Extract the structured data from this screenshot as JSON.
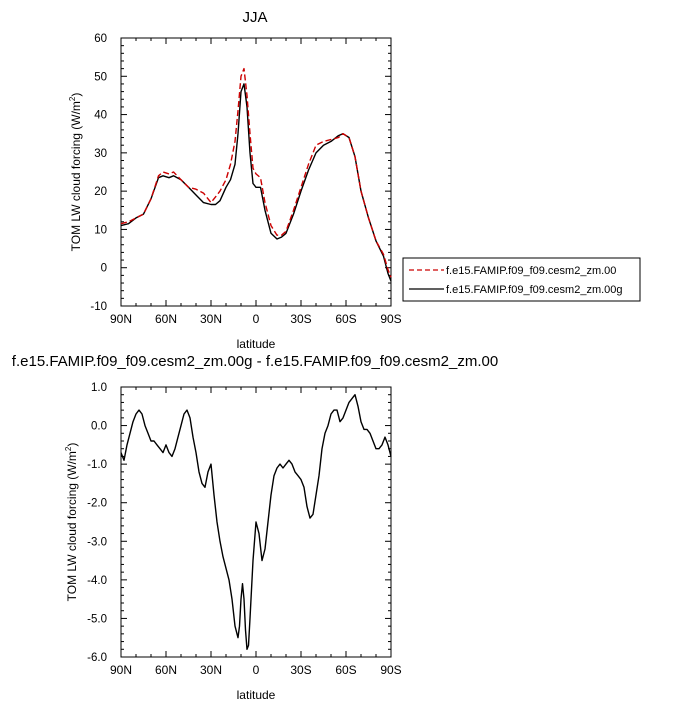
{
  "chart_data": [
    {
      "type": "line",
      "title": "JJA",
      "xlabel": "latitude",
      "ylabel": "TOM LW cloud forcing (W/m",
      "ylabel_sup": "2",
      "ylabel_close": ")",
      "xlim": [
        90,
        -90
      ],
      "ylim": [
        -10,
        60
      ],
      "x_ticks": [
        90,
        60,
        30,
        0,
        -30,
        -60,
        -90
      ],
      "x_tick_labels": [
        "90N",
        "60N",
        "30N",
        "0",
        "30S",
        "60S",
        "90S"
      ],
      "y_ticks": [
        -10,
        0,
        10,
        20,
        30,
        40,
        50,
        60
      ],
      "y_tick_labels": [
        "-10",
        "0",
        "10",
        "20",
        "30",
        "40",
        "50",
        "60"
      ],
      "legend": "outside-right",
      "series": [
        {
          "name": "f.e15.FAMIP.f09_f09.cesm2_zm.00",
          "color": "#cc0000",
          "dash": "dashed",
          "x": [
            90,
            85,
            80,
            75,
            70,
            65,
            62,
            58,
            55,
            50,
            45,
            40,
            35,
            30,
            27,
            24,
            20,
            17,
            14,
            12,
            10,
            8,
            6,
            4,
            2,
            0,
            -3,
            -6,
            -10,
            -14,
            -17,
            -20,
            -25,
            -30,
            -35,
            -40,
            -45,
            -50,
            -55,
            -58,
            -62,
            -66,
            -70,
            -75,
            -80,
            -85,
            -88,
            -90
          ],
          "values": [
            11.5,
            12,
            13,
            14,
            18,
            24,
            25,
            24.5,
            25,
            23,
            21,
            20.5,
            19.5,
            17,
            18.5,
            20,
            23,
            27,
            33,
            41,
            50,
            52,
            45,
            35,
            26,
            24.5,
            23.5,
            17,
            11,
            8.5,
            8.5,
            9.5,
            15,
            21,
            27,
            32,
            33,
            33.5,
            34,
            35,
            34,
            29,
            20,
            13,
            7,
            3.5,
            -0.5,
            -2.5
          ]
        },
        {
          "name": "f.e15.FAMIP.f09_f09.cesm2_zm.00g",
          "color": "#000000",
          "dash": "solid",
          "x": [
            90,
            85,
            80,
            75,
            70,
            65,
            62,
            58,
            55,
            50,
            45,
            40,
            35,
            30,
            27,
            24,
            20,
            17,
            14,
            12,
            10,
            8,
            6,
            4,
            2,
            0,
            -3,
            -6,
            -10,
            -14,
            -17,
            -20,
            -25,
            -30,
            -35,
            -40,
            -45,
            -50,
            -55,
            -58,
            -62,
            -66,
            -70,
            -75,
            -80,
            -85,
            -88,
            -90
          ],
          "values": [
            11,
            11.5,
            13,
            14,
            18,
            23.5,
            24,
            23.5,
            24,
            23,
            21,
            19,
            17,
            16.5,
            16.5,
            17.5,
            21,
            23,
            27,
            35,
            46,
            48,
            42,
            30,
            22,
            21,
            21,
            15,
            9,
            7.5,
            8,
            9,
            14,
            20,
            25.5,
            30,
            32,
            33,
            34.5,
            35,
            34,
            29,
            20,
            13,
            7,
            3,
            -1.5,
            -3.5
          ]
        }
      ]
    },
    {
      "type": "line",
      "title": "f.e15.FAMIP.f09_f09.cesm2_zm.00g - f.e15.FAMIP.f09_f09.cesm2_zm.00",
      "xlabel": "latitude",
      "ylabel": "TOM LW cloud forcing (W/m",
      "ylabel_sup": "2",
      "ylabel_close": ")",
      "xlim": [
        90,
        -90
      ],
      "ylim": [
        -6,
        1
      ],
      "x_ticks": [
        90,
        60,
        30,
        0,
        -30,
        -60,
        -90
      ],
      "x_tick_labels": [
        "90N",
        "60N",
        "30N",
        "0",
        "30S",
        "60S",
        "90S"
      ],
      "y_ticks": [
        -6,
        -5,
        -4,
        -3,
        -2,
        -1,
        0,
        1
      ],
      "y_tick_labels": [
        "-6.0",
        "-5.0",
        "-4.0",
        "-3.0",
        "-2.0",
        "-1.0",
        "0.0",
        "1.0"
      ],
      "series": [
        {
          "name": "",
          "color": "#000000",
          "dash": "solid",
          "x": [
            90,
            88,
            86,
            84,
            82,
            80,
            78,
            76,
            74,
            72,
            70,
            68,
            66,
            64,
            62,
            60,
            58,
            56,
            54,
            52,
            50,
            48,
            46,
            44,
            42,
            40,
            38,
            36,
            34,
            32,
            30,
            28,
            26,
            24,
            22,
            20,
            18,
            16,
            14,
            12,
            11,
            10,
            9,
            8,
            7,
            6,
            5,
            4,
            2,
            0,
            -2,
            -4,
            -6,
            -8,
            -10,
            -12,
            -14,
            -16,
            -18,
            -20,
            -22,
            -24,
            -26,
            -28,
            -30,
            -32,
            -34,
            -36,
            -38,
            -40,
            -42,
            -44,
            -46,
            -48,
            -50,
            -52,
            -54,
            -56,
            -58,
            -60,
            -62,
            -64,
            -66,
            -68,
            -70,
            -72,
            -74,
            -76,
            -78,
            -80,
            -82,
            -84,
            -86,
            -88,
            -90
          ],
          "values": [
            -0.7,
            -0.9,
            -0.5,
            -0.2,
            0.1,
            0.3,
            0.4,
            0.3,
            0.0,
            -0.2,
            -0.4,
            -0.4,
            -0.5,
            -0.6,
            -0.7,
            -0.5,
            -0.7,
            -0.8,
            -0.6,
            -0.3,
            0.0,
            0.3,
            0.4,
            0.2,
            -0.3,
            -0.7,
            -1.2,
            -1.5,
            -1.6,
            -1.2,
            -1.0,
            -1.8,
            -2.5,
            -3.0,
            -3.4,
            -3.7,
            -4.0,
            -4.5,
            -5.2,
            -5.5,
            -5.2,
            -4.5,
            -4.1,
            -4.5,
            -5.3,
            -5.8,
            -5.7,
            -5.0,
            -3.5,
            -2.5,
            -2.8,
            -3.5,
            -3.2,
            -2.5,
            -1.8,
            -1.3,
            -1.1,
            -1.0,
            -1.1,
            -1.0,
            -0.9,
            -1.0,
            -1.2,
            -1.3,
            -1.4,
            -1.6,
            -2.1,
            -2.4,
            -2.3,
            -1.8,
            -1.3,
            -0.6,
            -0.2,
            0.0,
            0.3,
            0.4,
            0.4,
            0.1,
            0.2,
            0.4,
            0.6,
            0.7,
            0.8,
            0.5,
            0.1,
            -0.1,
            -0.1,
            -0.2,
            -0.4,
            -0.6,
            -0.6,
            -0.5,
            -0.3,
            -0.5,
            -0.8
          ]
        }
      ]
    }
  ]
}
